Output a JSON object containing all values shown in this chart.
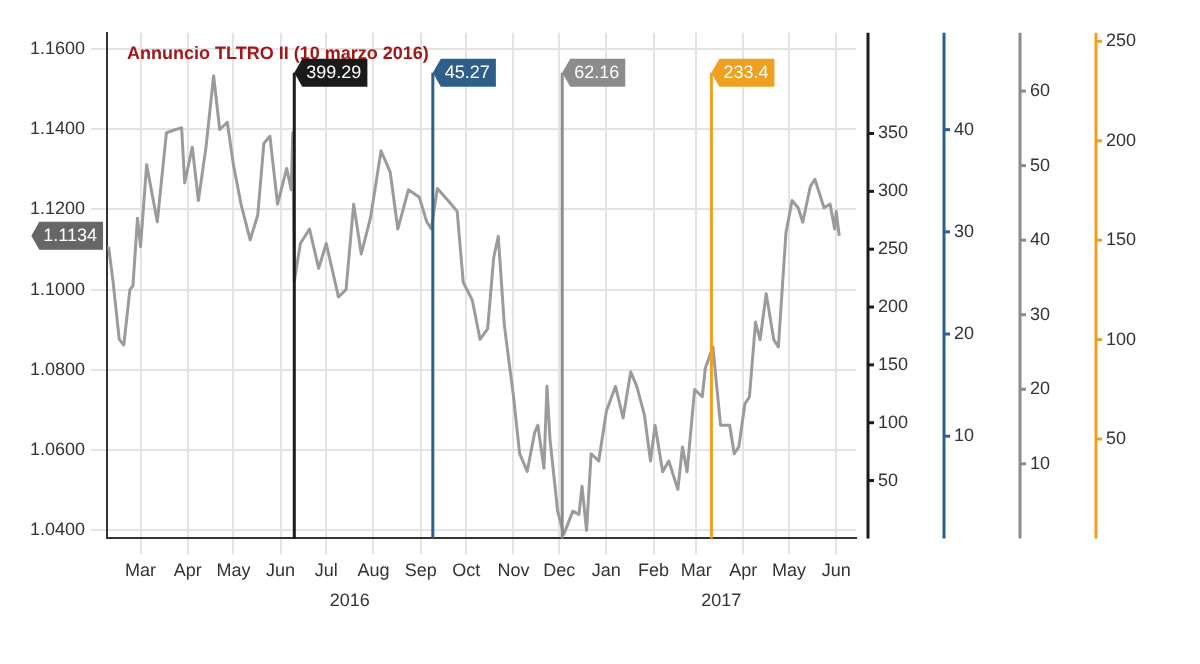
{
  "chart_data": {
    "type": "line",
    "xlim": [
      "2016-02-22",
      "2017-06-28"
    ],
    "xticks": [
      {
        "value": "2016-03-15",
        "label": "Mar"
      },
      {
        "value": "2016-04-15",
        "label": "Apr"
      },
      {
        "value": "2016-05-15",
        "label": "May"
      },
      {
        "value": "2016-06-15",
        "label": "Jun"
      },
      {
        "value": "2016-07-15",
        "label": "Jul"
      },
      {
        "value": "2016-08-15",
        "label": "Aug"
      },
      {
        "value": "2016-09-15",
        "label": "Sep"
      },
      {
        "value": "2016-10-15",
        "label": "Oct"
      },
      {
        "value": "2016-11-15",
        "label": "Nov"
      },
      {
        "value": "2016-12-15",
        "label": "Dec"
      },
      {
        "value": "2017-01-15",
        "label": "Jan"
      },
      {
        "value": "2017-02-15",
        "label": "Feb"
      },
      {
        "value": "2017-03-15",
        "label": "Mar"
      },
      {
        "value": "2017-04-15",
        "label": "Apr"
      },
      {
        "value": "2017-05-15",
        "label": "May"
      },
      {
        "value": "2017-06-15",
        "label": "Jun"
      }
    ],
    "ylim": [
      1.038,
      1.164
    ],
    "yticks": [
      {
        "value": 1.04,
        "label": "1.0400"
      },
      {
        "value": 1.06,
        "label": "1.0600"
      },
      {
        "value": 1.08,
        "label": "1.0800"
      },
      {
        "value": 1.1,
        "label": "1.1000"
      },
      {
        "value": 1.12,
        "label": "1.1200"
      },
      {
        "value": 1.14,
        "label": "1.1400"
      },
      {
        "value": 1.16,
        "label": "1.1600"
      }
    ],
    "grid": true,
    "series": [
      {
        "color": "#9b9b9b",
        "x": [
          "2016-02-23",
          "2016-02-26",
          "2016-03-01",
          "2016-03-04",
          "2016-03-08",
          "2016-03-10",
          "2016-03-13",
          "2016-03-15",
          "2016-03-19",
          "2016-03-26",
          "2016-04-01",
          "2016-04-07",
          "2016-04-11",
          "2016-04-13",
          "2016-04-18",
          "2016-04-22",
          "2016-04-27",
          "2016-05-02",
          "2016-05-06",
          "2016-05-11",
          "2016-05-15",
          "2016-05-20",
          "2016-05-26",
          "2016-05-31",
          "2016-06-04",
          "2016-06-08",
          "2016-06-13",
          "2016-06-19",
          "2016-06-22",
          "2016-06-23",
          "2016-06-24",
          "2016-06-28",
          "2016-07-04",
          "2016-07-10",
          "2016-07-15",
          "2016-07-23",
          "2016-07-28",
          "2016-08-02",
          "2016-08-07",
          "2016-08-13",
          "2016-08-20",
          "2016-08-26",
          "2016-08-31",
          "2016-09-07",
          "2016-09-14",
          "2016-09-19",
          "2016-09-22",
          "2016-09-26",
          "2016-10-03",
          "2016-10-09",
          "2016-10-13",
          "2016-10-19",
          "2016-10-24",
          "2016-10-29",
          "2016-11-02",
          "2016-11-05",
          "2016-11-09",
          "2016-11-15",
          "2016-11-19",
          "2016-11-24",
          "2016-11-29",
          "2016-12-01",
          "2016-12-05",
          "2016-12-07",
          "2016-12-09",
          "2016-12-14",
          "2016-12-18",
          "2016-12-24",
          "2016-12-28",
          "2016-12-30",
          "2017-01-02",
          "2017-01-05",
          "2017-01-10",
          "2017-01-15",
          "2017-01-21",
          "2017-01-26",
          "2017-01-31",
          "2017-02-04",
          "2017-02-09",
          "2017-02-13",
          "2017-02-16",
          "2017-02-21",
          "2017-02-25",
          "2017-03-03",
          "2017-03-06",
          "2017-03-09",
          "2017-03-14",
          "2017-03-19",
          "2017-03-21",
          "2017-03-26",
          "2017-03-31",
          "2017-04-06",
          "2017-04-09",
          "2017-04-12",
          "2017-04-16",
          "2017-04-19",
          "2017-04-23",
          "2017-04-26",
          "2017-04-30",
          "2017-05-05",
          "2017-05-08",
          "2017-05-13",
          "2017-05-17",
          "2017-05-21",
          "2017-05-24",
          "2017-05-29",
          "2017-06-01",
          "2017-06-07",
          "2017-06-11",
          "2017-06-14",
          "2017-06-15",
          "2017-06-17"
        ],
        "values": [
          1.1107,
          1.1018,
          1.0876,
          1.0862,
          1.1,
          1.1009,
          1.1178,
          1.1107,
          1.1311,
          1.1169,
          1.1391,
          1.1399,
          1.1403,
          1.1266,
          1.1355,
          1.1222,
          1.1355,
          1.1533,
          1.1399,
          1.1417,
          1.1311,
          1.1213,
          1.1124,
          1.1186,
          1.1364,
          1.1382,
          1.1213,
          1.1302,
          1.1249,
          1.1391,
          1.1021,
          1.1115,
          1.1151,
          1.1053,
          1.1115,
          1.0982,
          1.1,
          1.1213,
          1.1089,
          1.1178,
          1.1346,
          1.1293,
          1.1151,
          1.1249,
          1.1231,
          1.1169,
          1.1151,
          1.1252,
          1.1222,
          1.1195,
          1.1018,
          1.0973,
          1.0876,
          1.0902,
          1.108,
          1.1133,
          1.0911,
          1.0734,
          1.0592,
          1.0547,
          1.0645,
          1.0662,
          1.0555,
          1.0759,
          1.0626,
          1.0448,
          1.039,
          1.0448,
          1.044,
          1.051,
          1.04,
          1.0591,
          1.0573,
          1.0697,
          1.0759,
          1.068,
          1.0795,
          1.0759,
          1.0688,
          1.0573,
          1.0662,
          1.0546,
          1.0573,
          1.0502,
          1.0608,
          1.0546,
          1.0751,
          1.0733,
          1.0804,
          1.0857,
          1.0662,
          1.0662,
          1.0591,
          1.0608,
          1.0715,
          1.0733,
          1.0919,
          1.0875,
          1.099,
          1.0875,
          1.0857,
          1.1142,
          1.1222,
          1.1204,
          1.1168,
          1.1257,
          1.1275,
          1.1204,
          1.1213,
          1.1151,
          1.1195,
          1.1134
        ]
      }
    ],
    "ref_lines": [
      {
        "axis": "x",
        "value": "2016-06-24",
        "label": "399.29",
        "color": "#1a1a1a"
      },
      {
        "axis": "x",
        "value": "2016-09-23",
        "label": "45.27",
        "color": "#2e5f8a"
      },
      {
        "axis": "x",
        "value": "2016-12-17",
        "label": "62.16",
        "color": "#8c8c8c"
      },
      {
        "axis": "x",
        "value": "2017-03-25",
        "label": "233.4",
        "color": "#f0a020"
      }
    ],
    "annotations": [
      "Annuncio TLTRO II (10 marzo 2016)",
      {
        "text": "1.1134",
        "y": 1.1134
      },
      "2016",
      "2017",
      "350\n300\n250\n200\n150\n100\n50",
      "40\n30\n20\n10",
      "60\n50\n40\n30\n20\n10",
      "250\n200\n150\n100\n50"
    ]
  }
}
